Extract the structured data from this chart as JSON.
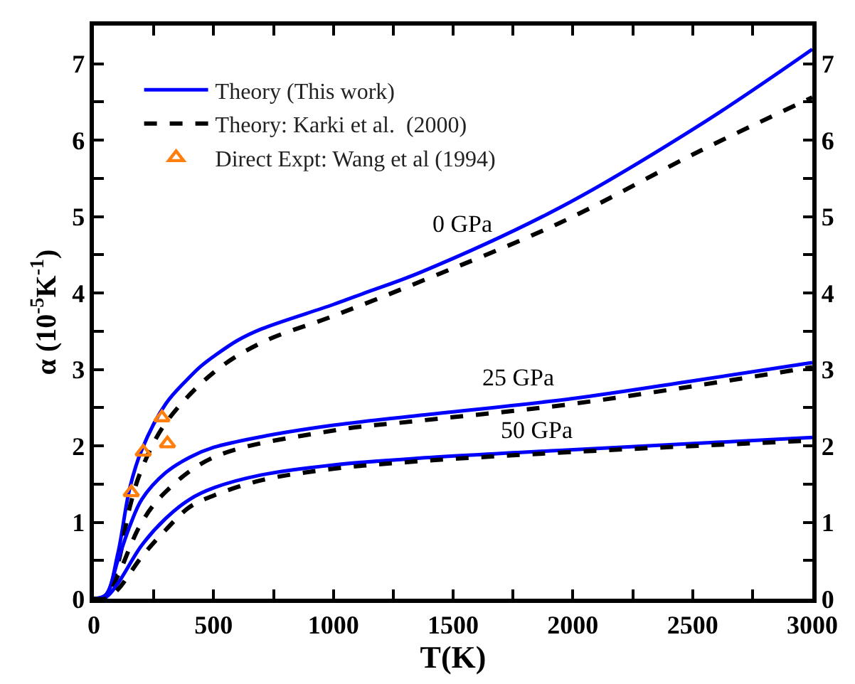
{
  "chart_data": {
    "type": "line",
    "xlabel": "T(K)",
    "ylabel": "α (10$^{-5}$K$^{-1}$)",
    "xlim": [
      0,
      3000
    ],
    "xticks": [
      0,
      {
        "value": 250,
        "label": null
      },
      500,
      {
        "value": 750,
        "label": null
      },
      1000,
      {
        "value": 1250,
        "label": null
      },
      1500,
      {
        "value": 1750,
        "label": null
      },
      2000,
      {
        "value": 2250,
        "label": null
      },
      2500,
      {
        "value": 2750,
        "label": null
      },
      3000
    ],
    "ylim": [
      0,
      7.5
    ],
    "yticks": [
      0,
      {
        "value": 0.5,
        "label": null
      },
      1,
      {
        "value": 1.5,
        "label": null
      },
      2,
      {
        "value": 2.5,
        "label": null
      },
      3,
      {
        "value": 3.5,
        "label": null
      },
      4,
      {
        "value": 4.5,
        "label": null
      },
      5,
      {
        "value": 5.5,
        "label": null
      },
      6,
      {
        "value": 6.5,
        "label": null
      },
      7
    ],
    "y2lim": [
      0,
      7.5
    ],
    "y2ticks": [
      0,
      {
        "value": 0.5,
        "label": null
      },
      1,
      {
        "value": 1.5,
        "label": null
      },
      2,
      {
        "value": 2.5,
        "label": null
      },
      3,
      {
        "value": 3.5,
        "label": null
      },
      4,
      {
        "value": 4.5,
        "label": null
      },
      5,
      {
        "value": 5.5,
        "label": null
      },
      6,
      {
        "value": 6.5,
        "label": null
      },
      7
    ],
    "legend": "top left",
    "series": [
      {
        "name": "Theory (This work)",
        "color": "#0000ff",
        "line_style": "solid",
        "x": [
          0,
          50,
          100,
          150,
          200,
          300,
          400,
          450,
          500,
          600,
          700,
          1000,
          1130,
          1363,
          1947,
          2531,
          3000
        ],
        "values": [
          0,
          0.05,
          0.59,
          1.45,
          1.95,
          2.55,
          2.9,
          3.05,
          3.17,
          3.38,
          3.53,
          3.85,
          4.0,
          4.27,
          5.12,
          6.2,
          7.19
        ]
      },
      {
        "name": "Theory: Karki et al.  (2000)",
        "color": "#000000",
        "line_style": "dashed",
        "x": [
          0,
          50,
          100,
          150,
          200,
          300,
          500,
          700,
          1000,
          1363,
          1947,
          2531,
          3000
        ],
        "values": [
          0,
          0.02,
          0.45,
          1.2,
          1.7,
          2.3,
          2.96,
          3.35,
          3.7,
          4.15,
          4.92,
          5.86,
          6.56
        ]
      },
      {
        "name": "Direct Expt: Wang et al (1994)",
        "type": "scatter",
        "marker": "triangle",
        "color": "#ff7f0e",
        "x": [
          156,
          206,
          284,
          307
        ],
        "values": [
          1.39,
          1.92,
          2.37,
          2.03
        ]
      },
      {
        "color": "#0000ff",
        "line_style": "solid",
        "x": [
          0,
          50,
          100,
          150,
          200,
          300,
          400,
          500,
          700,
          1000,
          1363,
          2000,
          2500,
          3000
        ],
        "values": [
          0,
          0.05,
          0.5,
          0.95,
          1.3,
          1.65,
          1.85,
          1.98,
          2.12,
          2.27,
          2.4,
          2.62,
          2.85,
          3.09
        ]
      },
      {
        "color": "#000000",
        "line_style": "dashed",
        "x": [
          0,
          50,
          100,
          200,
          300,
          500,
          1000,
          1363,
          2000,
          3000
        ],
        "values": [
          0,
          0.01,
          0.3,
          1.0,
          1.4,
          1.85,
          2.2,
          2.33,
          2.55,
          3.03
        ]
      },
      {
        "color": "#0000ff",
        "line_style": "solid",
        "x": [
          0,
          50,
          100,
          200,
          300,
          400,
          500,
          700,
          1000,
          1363,
          2000,
          3000
        ],
        "values": [
          0,
          0.02,
          0.2,
          0.7,
          1.05,
          1.3,
          1.45,
          1.62,
          1.75,
          1.84,
          1.95,
          2.11
        ]
      },
      {
        "color": "#000000",
        "line_style": "dashed",
        "x": [
          0,
          50,
          100,
          200,
          300,
          400,
          500,
          700,
          1000,
          1363,
          2000,
          3000
        ],
        "values": [
          0,
          0.0,
          0.12,
          0.55,
          0.9,
          1.2,
          1.35,
          1.55,
          1.7,
          1.8,
          1.92,
          2.07
        ]
      }
    ],
    "annotations": [
      "0 GPa",
      "25 GPa",
      "50 GPa"
    ]
  }
}
